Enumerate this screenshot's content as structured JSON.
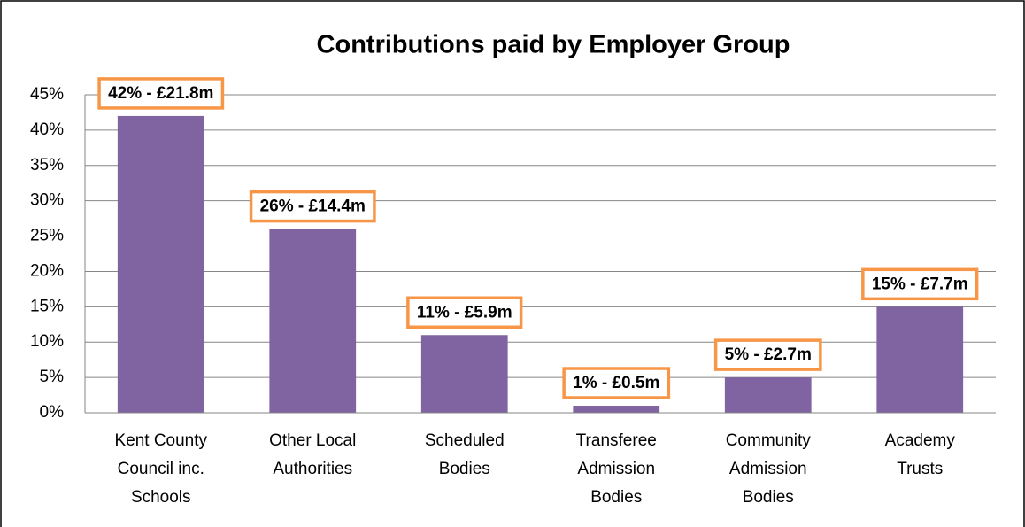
{
  "chart_data": {
    "type": "bar",
    "title": "Contributions paid by Employer Group",
    "categories": [
      "Kent County Council inc. Schools",
      "Other Local Authorities",
      "Scheduled Bodies",
      "Transferee Admission Bodies",
      "Community Admission Bodies",
      "Academy Trusts"
    ],
    "values": [
      42,
      26,
      11,
      1,
      5,
      15
    ],
    "value_labels": [
      "42% - £21.8m",
      "26% - £14.4m",
      "11% - £5.9m",
      "1% - £0.5m",
      "5% - £2.7m",
      "15% - £7.7m"
    ],
    "color": "#8064a2",
    "label_border_color": "#f79646",
    "ylim": [
      0,
      45
    ],
    "yticks": [
      {
        "value": 0,
        "label": "0%"
      },
      {
        "value": 5,
        "label": "5%"
      },
      {
        "value": 10,
        "label": "10%"
      },
      {
        "value": 15,
        "label": "15%"
      },
      {
        "value": 20,
        "label": "20%"
      },
      {
        "value": 25,
        "label": "25%"
      },
      {
        "value": 30,
        "label": "30%"
      },
      {
        "value": 35,
        "label": "35%"
      },
      {
        "value": 40,
        "label": "40%"
      },
      {
        "value": 45,
        "label": "45%"
      }
    ],
    "grid": true
  }
}
